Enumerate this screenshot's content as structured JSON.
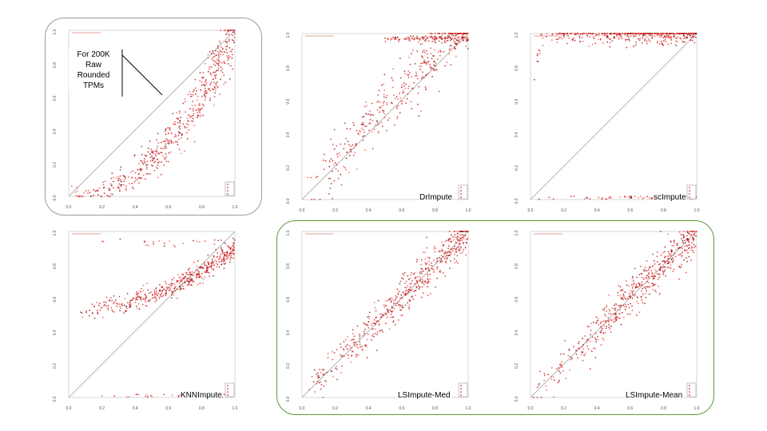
{
  "note": "For 200K Raw Rounded TPMs",
  "frame_colors": {
    "left_group": "#9a9a9a",
    "right_group": "#5e9a3c"
  },
  "axis_ticks": [
    "0.0",
    "0.2",
    "0.4",
    "0.6",
    "0.8",
    "1.0"
  ],
  "chart_data": [
    {
      "type": "scatter",
      "id": "raw",
      "title": "",
      "xlim": [
        0,
        1
      ],
      "ylim": [
        0,
        1
      ],
      "shape": "raw_convex",
      "color": "#d42020",
      "legend": [
        "",
        "",
        "",
        ""
      ]
    },
    {
      "type": "scatter",
      "id": "drimpute",
      "title": "DrImpute",
      "xlim": [
        0,
        1
      ],
      "ylim": [
        0,
        1
      ],
      "shape": "dr",
      "color": "#d42020",
      "legend": [
        "",
        "",
        "",
        ""
      ]
    },
    {
      "type": "scatter",
      "id": "scimpute",
      "title": "scImpute",
      "xlim": [
        0,
        1
      ],
      "ylim": [
        0,
        1
      ],
      "shape": "sc",
      "color": "#d42020",
      "legend": [
        "",
        "",
        "",
        ""
      ]
    },
    {
      "type": "scatter",
      "id": "knnimpute",
      "title": "KNNImpute",
      "xlim": [
        0,
        1
      ],
      "ylim": [
        0,
        1
      ],
      "shape": "knn",
      "color": "#d42020",
      "legend": [
        "",
        "",
        "",
        ""
      ]
    },
    {
      "type": "scatter",
      "id": "lsimpute_med",
      "title": "LSImpute-Med",
      "xlim": [
        0,
        1
      ],
      "ylim": [
        0,
        1
      ],
      "shape": "ls",
      "color": "#d42020",
      "legend": [
        "",
        "",
        "",
        ""
      ]
    },
    {
      "type": "scatter",
      "id": "lsimpute_mean",
      "title": "LSImpute-Mean",
      "xlim": [
        0,
        1
      ],
      "ylim": [
        0,
        1
      ],
      "shape": "ls",
      "color": "#d42020",
      "legend": [
        "",
        "",
        "",
        ""
      ]
    }
  ]
}
